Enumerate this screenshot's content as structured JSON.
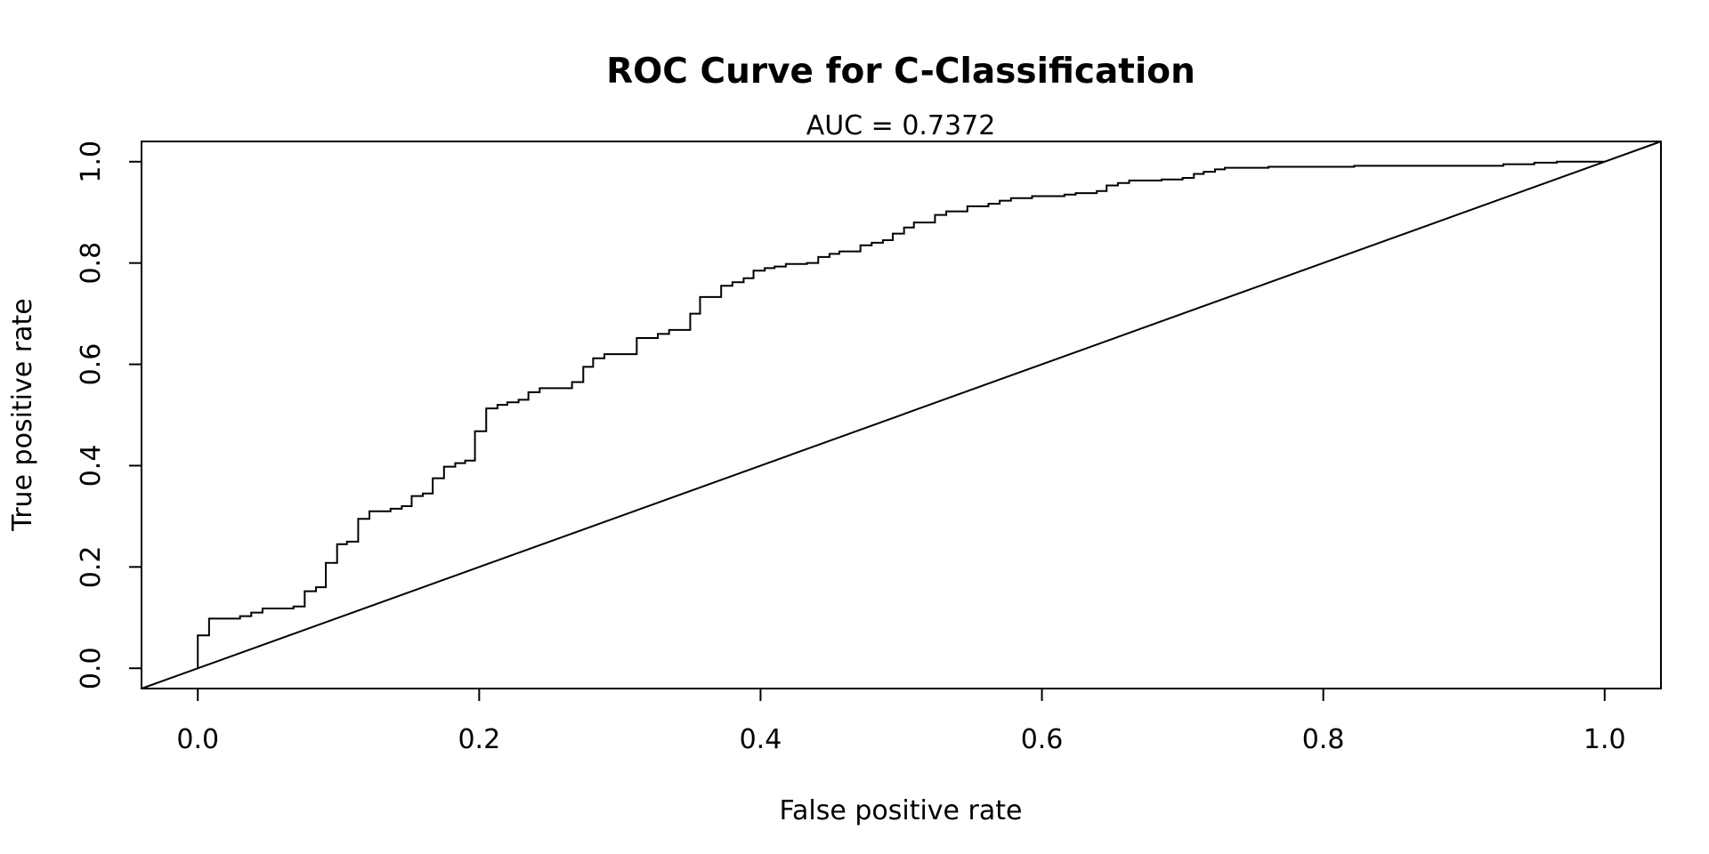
{
  "chart_data": {
    "type": "line",
    "title": "ROC Curve for C-Classification",
    "subtitle": "AUC = 0.7372",
    "xlabel": "False positive rate",
    "ylabel": "True positive rate",
    "xlim": [
      -0.04,
      1.04
    ],
    "ylim": [
      -0.04,
      1.04
    ],
    "x_ticks": [
      0.0,
      0.2,
      0.4,
      0.6,
      0.8,
      1.0
    ],
    "y_ticks": [
      0.0,
      0.2,
      0.4,
      0.6,
      0.8,
      1.0
    ],
    "x_tick_labels": [
      "0.0",
      "0.2",
      "0.4",
      "0.6",
      "0.8",
      "1.0"
    ],
    "y_tick_labels": [
      "0.0",
      "0.2",
      "0.4",
      "0.6",
      "0.8",
      "1.0"
    ],
    "grid": false,
    "series": [
      {
        "values": [
          [
            0.0,
            0.0
          ],
          [
            0.0,
            0.065
          ],
          [
            0.008,
            0.065
          ],
          [
            0.008,
            0.098
          ],
          [
            0.03,
            0.098
          ],
          [
            0.03,
            0.103
          ],
          [
            0.038,
            0.103
          ],
          [
            0.038,
            0.11
          ],
          [
            0.046,
            0.11
          ],
          [
            0.046,
            0.118
          ],
          [
            0.068,
            0.118
          ],
          [
            0.068,
            0.122
          ],
          [
            0.076,
            0.122
          ],
          [
            0.076,
            0.152
          ],
          [
            0.084,
            0.152
          ],
          [
            0.084,
            0.16
          ],
          [
            0.091,
            0.16
          ],
          [
            0.091,
            0.208
          ],
          [
            0.099,
            0.208
          ],
          [
            0.099,
            0.245
          ],
          [
            0.106,
            0.245
          ],
          [
            0.106,
            0.25
          ],
          [
            0.114,
            0.25
          ],
          [
            0.114,
            0.295
          ],
          [
            0.122,
            0.295
          ],
          [
            0.122,
            0.31
          ],
          [
            0.137,
            0.31
          ],
          [
            0.137,
            0.315
          ],
          [
            0.145,
            0.315
          ],
          [
            0.145,
            0.32
          ],
          [
            0.152,
            0.32
          ],
          [
            0.152,
            0.34
          ],
          [
            0.16,
            0.34
          ],
          [
            0.16,
            0.345
          ],
          [
            0.167,
            0.345
          ],
          [
            0.167,
            0.375
          ],
          [
            0.175,
            0.375
          ],
          [
            0.175,
            0.398
          ],
          [
            0.183,
            0.398
          ],
          [
            0.183,
            0.405
          ],
          [
            0.19,
            0.405
          ],
          [
            0.19,
            0.41
          ],
          [
            0.197,
            0.41
          ],
          [
            0.197,
            0.468
          ],
          [
            0.205,
            0.468
          ],
          [
            0.205,
            0.513
          ],
          [
            0.213,
            0.513
          ],
          [
            0.213,
            0.52
          ],
          [
            0.22,
            0.52
          ],
          [
            0.22,
            0.525
          ],
          [
            0.228,
            0.525
          ],
          [
            0.228,
            0.53
          ],
          [
            0.235,
            0.53
          ],
          [
            0.235,
            0.545
          ],
          [
            0.243,
            0.545
          ],
          [
            0.243,
            0.553
          ],
          [
            0.266,
            0.553
          ],
          [
            0.266,
            0.565
          ],
          [
            0.274,
            0.565
          ],
          [
            0.274,
            0.595
          ],
          [
            0.281,
            0.595
          ],
          [
            0.281,
            0.612
          ],
          [
            0.289,
            0.612
          ],
          [
            0.289,
            0.62
          ],
          [
            0.312,
            0.62
          ],
          [
            0.312,
            0.652
          ],
          [
            0.327,
            0.652
          ],
          [
            0.327,
            0.66
          ],
          [
            0.335,
            0.66
          ],
          [
            0.335,
            0.668
          ],
          [
            0.35,
            0.668
          ],
          [
            0.35,
            0.7
          ],
          [
            0.357,
            0.7
          ],
          [
            0.357,
            0.733
          ],
          [
            0.372,
            0.733
          ],
          [
            0.372,
            0.755
          ],
          [
            0.38,
            0.755
          ],
          [
            0.38,
            0.762
          ],
          [
            0.388,
            0.762
          ],
          [
            0.388,
            0.77
          ],
          [
            0.395,
            0.77
          ],
          [
            0.395,
            0.785
          ],
          [
            0.403,
            0.785
          ],
          [
            0.403,
            0.79
          ],
          [
            0.41,
            0.79
          ],
          [
            0.41,
            0.793
          ],
          [
            0.418,
            0.793
          ],
          [
            0.418,
            0.798
          ],
          [
            0.433,
            0.798
          ],
          [
            0.433,
            0.8
          ],
          [
            0.441,
            0.8
          ],
          [
            0.441,
            0.812
          ],
          [
            0.449,
            0.812
          ],
          [
            0.449,
            0.818
          ],
          [
            0.456,
            0.818
          ],
          [
            0.456,
            0.823
          ],
          [
            0.471,
            0.823
          ],
          [
            0.471,
            0.835
          ],
          [
            0.479,
            0.835
          ],
          [
            0.479,
            0.84
          ],
          [
            0.487,
            0.84
          ],
          [
            0.487,
            0.845
          ],
          [
            0.494,
            0.845
          ],
          [
            0.494,
            0.858
          ],
          [
            0.502,
            0.858
          ],
          [
            0.502,
            0.87
          ],
          [
            0.509,
            0.87
          ],
          [
            0.509,
            0.88
          ],
          [
            0.524,
            0.88
          ],
          [
            0.524,
            0.895
          ],
          [
            0.532,
            0.895
          ],
          [
            0.532,
            0.902
          ],
          [
            0.547,
            0.902
          ],
          [
            0.547,
            0.912
          ],
          [
            0.562,
            0.912
          ],
          [
            0.562,
            0.917
          ],
          [
            0.57,
            0.917
          ],
          [
            0.57,
            0.923
          ],
          [
            0.578,
            0.923
          ],
          [
            0.578,
            0.928
          ],
          [
            0.593,
            0.928
          ],
          [
            0.593,
            0.932
          ],
          [
            0.616,
            0.932
          ],
          [
            0.616,
            0.935
          ],
          [
            0.624,
            0.935
          ],
          [
            0.624,
            0.938
          ],
          [
            0.639,
            0.938
          ],
          [
            0.639,
            0.942
          ],
          [
            0.646,
            0.942
          ],
          [
            0.646,
            0.953
          ],
          [
            0.654,
            0.953
          ],
          [
            0.654,
            0.958
          ],
          [
            0.662,
            0.958
          ],
          [
            0.662,
            0.963
          ],
          [
            0.685,
            0.963
          ],
          [
            0.685,
            0.965
          ],
          [
            0.7,
            0.965
          ],
          [
            0.7,
            0.968
          ],
          [
            0.708,
            0.968
          ],
          [
            0.708,
            0.976
          ],
          [
            0.715,
            0.976
          ],
          [
            0.715,
            0.98
          ],
          [
            0.723,
            0.98
          ],
          [
            0.723,
            0.985
          ],
          [
            0.73,
            0.985
          ],
          [
            0.73,
            0.988
          ],
          [
            0.761,
            0.988
          ],
          [
            0.761,
            0.99
          ],
          [
            0.822,
            0.99
          ],
          [
            0.822,
            0.992
          ],
          [
            0.928,
            0.992
          ],
          [
            0.928,
            0.995
          ],
          [
            0.95,
            0.995
          ],
          [
            0.95,
            0.998
          ],
          [
            0.966,
            0.998
          ],
          [
            0.966,
            1.0
          ],
          [
            1.0,
            1.0
          ]
        ]
      }
    ],
    "reference_line": [
      [
        -0.04,
        -0.04
      ],
      [
        1.04,
        1.04
      ]
    ]
  }
}
